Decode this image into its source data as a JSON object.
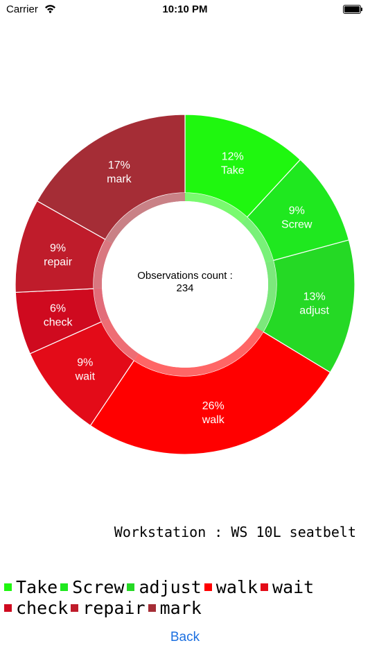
{
  "status_bar": {
    "carrier": "Carrier",
    "time": "10:10 PM"
  },
  "chart_data": {
    "type": "pie",
    "style": "donut",
    "categories": [
      "Take",
      "Screw",
      "adjust",
      "walk",
      "wait",
      "check",
      "repair",
      "mark"
    ],
    "values": [
      12,
      9,
      13,
      26,
      9,
      6,
      9,
      17
    ],
    "labels": [
      "12%",
      "9%",
      "13%",
      "26%",
      "9%",
      "6%",
      "9%",
      "17%"
    ],
    "colors": [
      "#1ff70f",
      "#1fe81f",
      "#25d925",
      "#ff0000",
      "#e30b18",
      "#cf0a1f",
      "#bf1c2b",
      "#a52d36"
    ],
    "center_title": "Observations count :",
    "center_value": "234",
    "legend_position": "bottom"
  },
  "workstation_text": "Workstation : WS 10L seatbelt",
  "back_label": "Back"
}
